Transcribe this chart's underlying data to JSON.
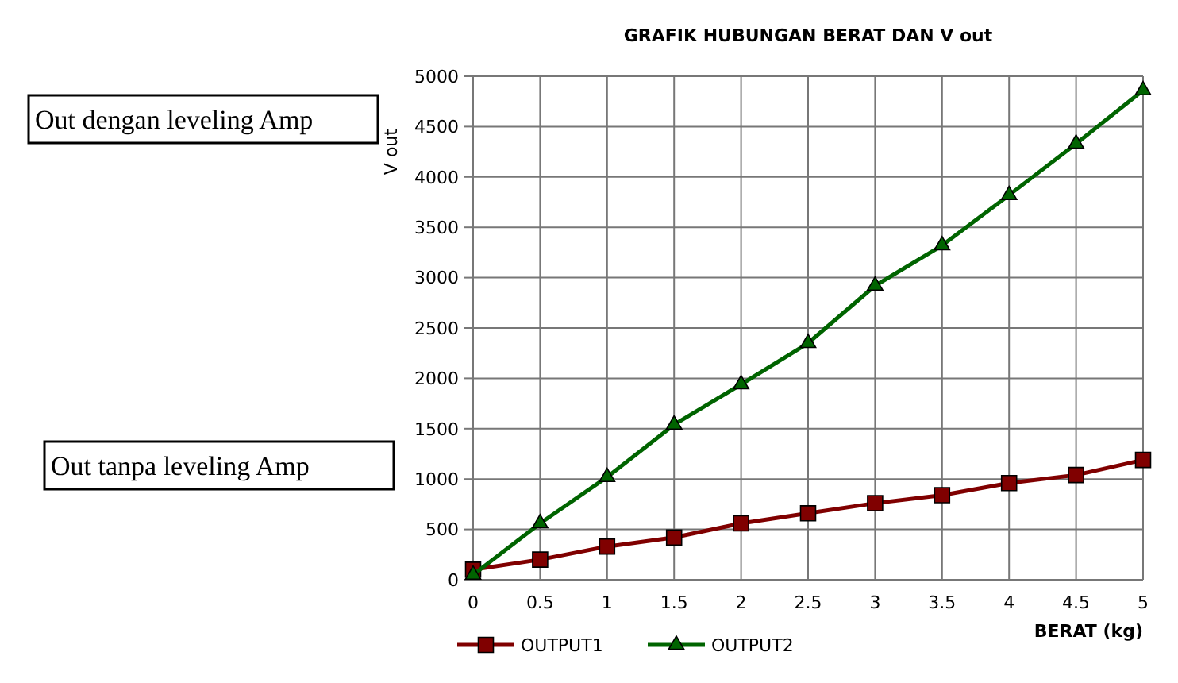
{
  "chart_data": {
    "type": "line",
    "title": "GRAFIK HUBUNGAN BERAT DAN V out",
    "xlabel": "BERAT (kg)",
    "ylabel": "V out",
    "x": [
      0,
      0.5,
      1,
      1.5,
      2,
      2.5,
      3,
      3.5,
      4,
      4.5,
      5
    ],
    "series": [
      {
        "name": "OUTPUT1",
        "color": "#800000",
        "marker": "square",
        "values": [
          100,
          200,
          330,
          420,
          560,
          660,
          760,
          840,
          960,
          1040,
          1190
        ]
      },
      {
        "name": "OUTPUT2",
        "color": "#006400",
        "marker": "triangle",
        "values": [
          50,
          560,
          1020,
          1540,
          1940,
          2350,
          2920,
          3320,
          3820,
          4330,
          4860
        ]
      }
    ],
    "xlim": [
      0,
      5
    ],
    "xticks": [
      0,
      0.5,
      1,
      1.5,
      2,
      2.5,
      3,
      3.5,
      4,
      4.5,
      5
    ],
    "ylim": [
      0,
      5000
    ],
    "yticks": [
      0,
      500,
      1000,
      1500,
      2000,
      2500,
      3000,
      3500,
      4000,
      4500,
      5000
    ],
    "grid": true,
    "legend": "bottom",
    "line_style": "solid",
    "annotations": [
      "Out dengan leveling Amp",
      "Out tanpa leveling Amp"
    ]
  }
}
